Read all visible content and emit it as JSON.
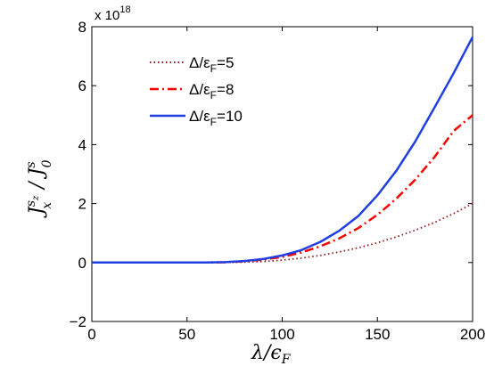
{
  "chart_data": {
    "type": "line",
    "title": "",
    "xlabel": "λ/ε_F",
    "ylabel": "J_x^{s_z}/J_0^s",
    "xlim": [
      0,
      200
    ],
    "ylim": [
      -2,
      8
    ],
    "y_exponent": "x 10^18",
    "xticks": [
      "0",
      "50",
      "100",
      "150",
      "200"
    ],
    "yticks": [
      "−2",
      "0",
      "2",
      "4",
      "6",
      "8"
    ],
    "x": [
      0,
      20,
      40,
      60,
      70,
      80,
      90,
      100,
      110,
      120,
      130,
      140,
      150,
      160,
      170,
      180,
      190,
      200
    ],
    "series": [
      {
        "name": "Δ/ε_F=5",
        "values": [
          0,
          0,
          0,
          0,
          0.003,
          0.013,
          0.035,
          0.08,
          0.15,
          0.24,
          0.36,
          0.5,
          0.67,
          0.87,
          1.1,
          1.36,
          1.66,
          2.0
        ],
        "color": "#8b1a1a",
        "style": "dotted"
      },
      {
        "name": "Δ/ε_F=8",
        "values": [
          0,
          0,
          0,
          0,
          0.01,
          0.04,
          0.1,
          0.19,
          0.34,
          0.55,
          0.82,
          1.17,
          1.62,
          2.17,
          2.82,
          3.58,
          4.46,
          5.0
        ],
        "color": "#ff0000",
        "style": "dashdot"
      },
      {
        "name": "Δ/ε_F=10",
        "values": [
          0,
          0,
          0,
          0,
          0.012,
          0.05,
          0.12,
          0.24,
          0.42,
          0.7,
          1.08,
          1.58,
          2.28,
          3.12,
          4.12,
          5.26,
          6.42,
          7.65
        ],
        "color": "#1f3fe0",
        "style": "solid"
      }
    ],
    "legend_position": "top-left",
    "grid": false
  },
  "legend": {
    "items": [
      {
        "prefix": "Δ/ε",
        "sub": "F",
        "suffix": "=5"
      },
      {
        "prefix": "Δ/ε",
        "sub": "F",
        "suffix": "=8"
      },
      {
        "prefix": "Δ/ε",
        "sub": "F",
        "suffix": "=10"
      }
    ]
  },
  "axes": {
    "exponent_base": "x 10",
    "exponent_power": "18",
    "ylabel_main": "J",
    "ylabel_sub": "x",
    "ylabel_sup": "s",
    "ylabel_supsub": "z",
    "ylabel_slash": " / J",
    "ylabel2_sub": "0",
    "ylabel2_sup": "s",
    "xlabel_lambda": "λ",
    "xlabel_slash": "/ϵ",
    "xlabel_sub": "F"
  }
}
